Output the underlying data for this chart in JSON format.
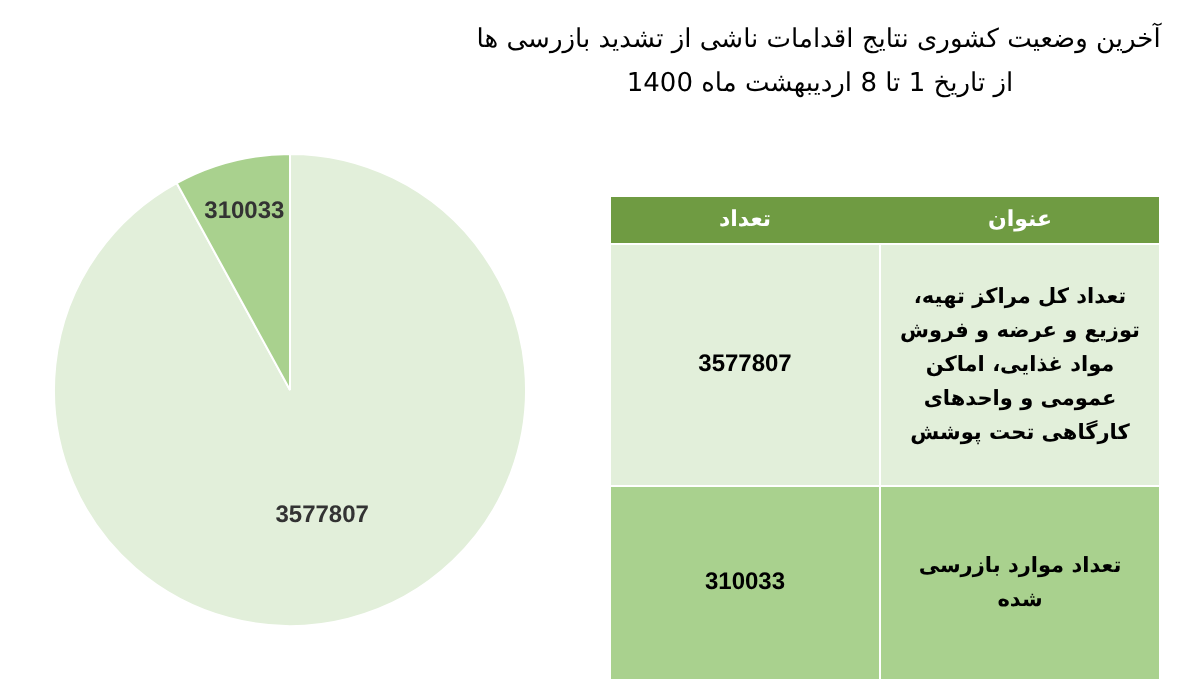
{
  "chart_data": [
    {
      "type": "pie",
      "title": "آخرین وضعیت کشوری نتایج اقدامات ناشی از تشدید بازرسی ها",
      "subtitle": "از تاریخ  1 تا 8 اردیبهشت ماه 1400",
      "categories": [
        null,
        null
      ],
      "values": [
        3577807,
        310033
      ],
      "colors": [
        "#e2efda",
        "#a9d18e"
      ],
      "data_labels": true
    },
    {
      "type": "other",
      "annotations": [
        "عنوان",
        "تعداد"
      ],
      "categories": [
        "تعداد کل مراکز تهیه، توزیع و عرضه و فروش مواد غذایی، اماکن عمومی و واحدهای کارگاهی تحت پوشش",
        "تعداد موارد بازرسی شده"
      ],
      "values": [
        3577807,
        310033
      ],
      "colors": [
        "#e2efda",
        "#a9d18e"
      ],
      "data_labels": true
    }
  ]
}
